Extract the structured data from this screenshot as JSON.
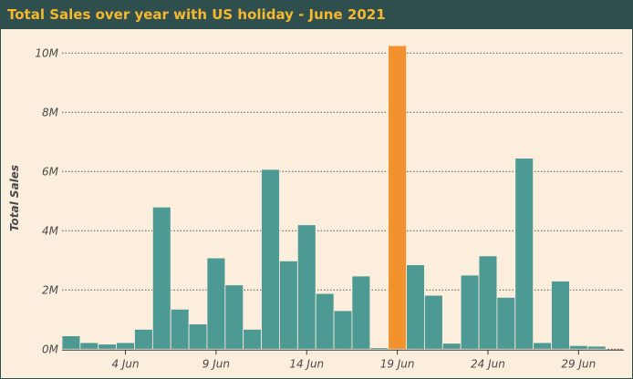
{
  "chart_data": {
    "type": "bar",
    "title": "Total Sales over year with US holiday - June 2021",
    "ylabel": "Total Sales",
    "xlabel": "",
    "x": [
      1,
      2,
      3,
      4,
      5,
      6,
      7,
      8,
      9,
      10,
      11,
      12,
      13,
      14,
      15,
      16,
      17,
      18,
      19,
      20,
      21,
      22,
      23,
      24,
      25,
      26,
      27,
      28,
      29,
      30
    ],
    "values": [
      0.45,
      0.22,
      0.17,
      0.22,
      0.67,
      4.8,
      1.35,
      0.85,
      3.08,
      2.17,
      0.67,
      6.07,
      2.98,
      4.2,
      1.88,
      1.3,
      2.47,
      0.05,
      10.25,
      2.85,
      1.82,
      0.2,
      2.5,
      3.15,
      1.75,
      6.45,
      0.22,
      2.3,
      0.12,
      0.1
    ],
    "holiday_day": 19,
    "bar_color": "#4d9994",
    "highlight_color": "#f2922e",
    "ylim": [
      -0.3,
      10.5
    ],
    "y_ticks": [
      {
        "value": 0,
        "label": "0M"
      },
      {
        "value": 2,
        "label": "2M"
      },
      {
        "value": 4,
        "label": "4M"
      },
      {
        "value": 6,
        "label": "6M"
      },
      {
        "value": 8,
        "label": "8M"
      },
      {
        "value": 10,
        "label": "10M"
      }
    ],
    "x_ticks": [
      {
        "day": 4,
        "label": "4 Jun"
      },
      {
        "day": 9,
        "label": "9 Jun"
      },
      {
        "day": 14,
        "label": "14 Jun"
      },
      {
        "day": 19,
        "label": "19 Jun"
      },
      {
        "day": 24,
        "label": "24 Jun"
      },
      {
        "day": 29,
        "label": "29 Jun"
      }
    ],
    "grid": "horizontal-dotted"
  }
}
